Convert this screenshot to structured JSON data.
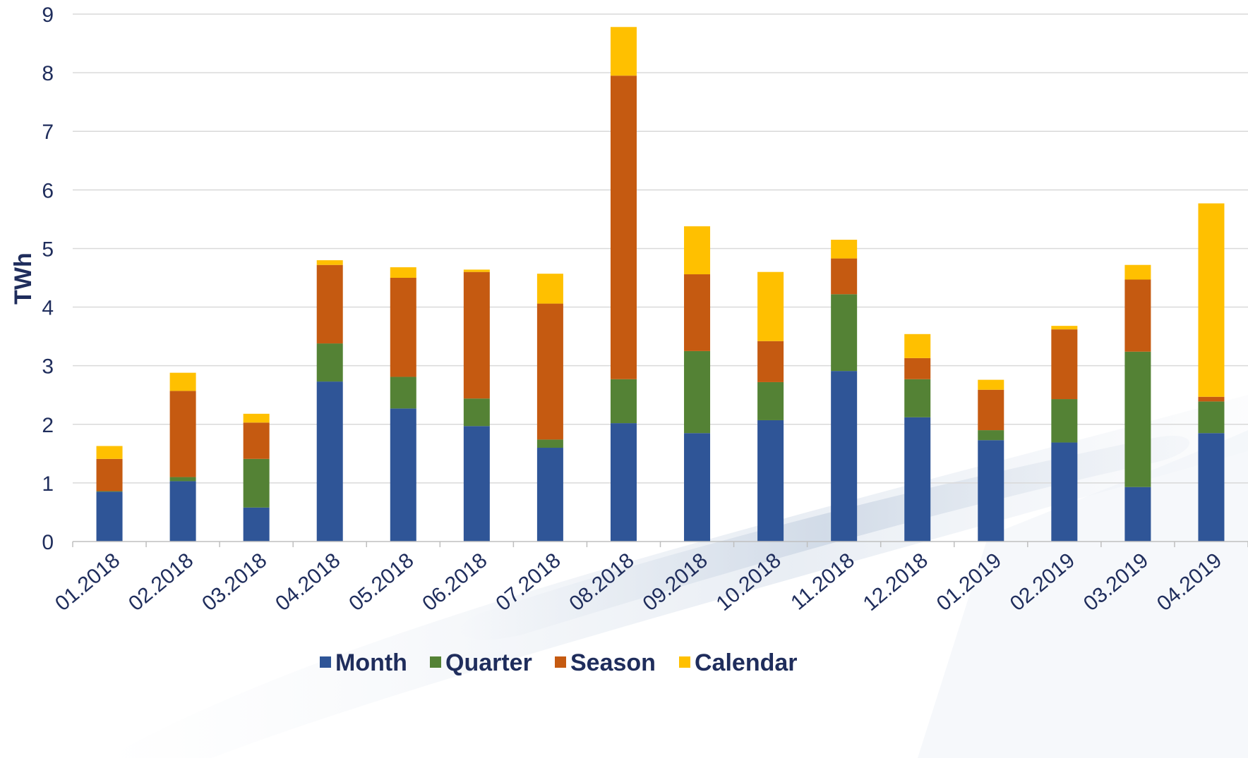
{
  "chart_data": {
    "type": "bar",
    "stacked": true,
    "title": "",
    "xlabel": "",
    "ylabel": "TWh",
    "ylim": [
      0,
      9
    ],
    "yticks": [
      0,
      1,
      2,
      3,
      4,
      5,
      6,
      7,
      8,
      9
    ],
    "grid": true,
    "legend_position": "bottom",
    "categories": [
      "01.2018",
      "02.2018",
      "03.2018",
      "04.2018",
      "05.2018",
      "06.2018",
      "07.2018",
      "08.2018",
      "09.2018",
      "10.2018",
      "11.2018",
      "12.2018",
      "01.2019",
      "02.2019",
      "03.2019",
      "04.2019"
    ],
    "series": [
      {
        "name": "Month",
        "color": "#2f5597",
        "values": [
          0.85,
          1.03,
          0.58,
          2.73,
          2.27,
          1.97,
          1.6,
          2.02,
          1.85,
          2.07,
          2.91,
          2.12,
          1.73,
          1.69,
          0.93,
          1.85
        ]
      },
      {
        "name": "Quarter",
        "color": "#548235",
        "values": [
          0.01,
          0.07,
          0.83,
          0.65,
          0.54,
          0.47,
          0.14,
          0.75,
          1.4,
          0.65,
          1.31,
          0.65,
          0.17,
          0.74,
          2.31,
          0.54
        ]
      },
      {
        "name": "Season",
        "color": "#c55a11",
        "values": [
          0.55,
          1.47,
          0.62,
          1.34,
          1.69,
          2.16,
          2.32,
          5.18,
          1.31,
          0.7,
          0.61,
          0.36,
          0.69,
          1.19,
          1.23,
          0.08
        ]
      },
      {
        "name": "Calendar",
        "color": "#ffc000",
        "values": [
          0.22,
          0.31,
          0.15,
          0.08,
          0.18,
          0.04,
          0.51,
          0.83,
          0.82,
          1.18,
          0.32,
          0.41,
          0.17,
          0.06,
          0.25,
          3.3
        ]
      }
    ]
  }
}
